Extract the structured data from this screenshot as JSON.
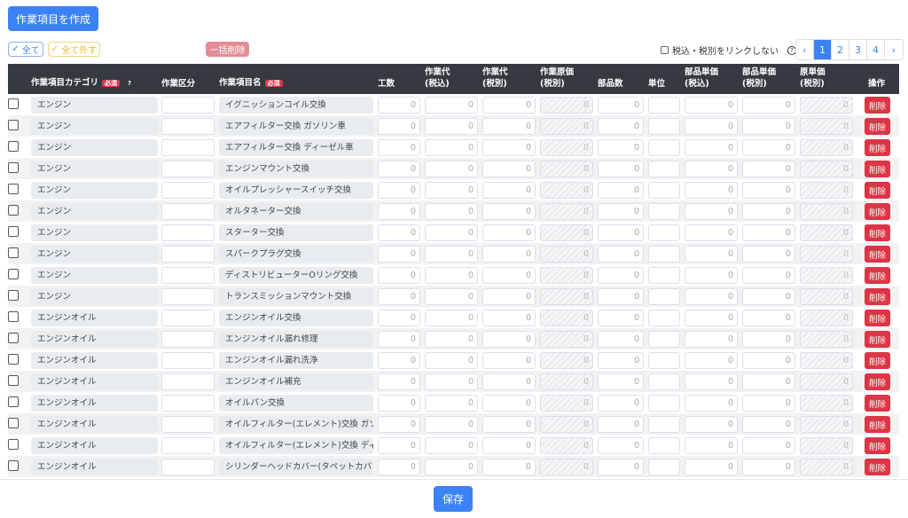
{
  "toolbar": {
    "create_label": "作業項目を作成",
    "select_all": "全て",
    "deselect_all": "全て外す",
    "bulk_delete": "一括削除",
    "link_label": "税込・税別をリンクしない",
    "help": "?"
  },
  "pagination": {
    "prev": "‹",
    "next": "›",
    "pages": [
      "1",
      "2",
      "3",
      "4"
    ],
    "current": "1"
  },
  "columns": {
    "category": "作業項目カテゴリ",
    "required": "必須",
    "kubun": "作業区分",
    "name": "作業項目名",
    "hours": "工数",
    "labor_incl": "作業代\n(税込)",
    "labor_excl": "作業代\n(税別)",
    "labor_cost": "作業原価\n(税別)",
    "parts_qty": "部品数",
    "unit": "単位",
    "parts_price_incl": "部品単価\n(税込)",
    "parts_price_excl": "部品単価\n(税別)",
    "cost_price": "原単価\n(税別)",
    "action": "操作"
  },
  "rows": [
    {
      "category": "エンジン",
      "name": "イグニッションコイル交換"
    },
    {
      "category": "エンジン",
      "name": "エアフィルター交換 ガソリン車"
    },
    {
      "category": "エンジン",
      "name": "エアフィルター交換 ディーゼル車"
    },
    {
      "category": "エンジン",
      "name": "エンジンマウント交換"
    },
    {
      "category": "エンジン",
      "name": "オイルプレッシャースイッチ交換"
    },
    {
      "category": "エンジン",
      "name": "オルタネーター交換"
    },
    {
      "category": "エンジン",
      "name": "スターター交換"
    },
    {
      "category": "エンジン",
      "name": "スパークプラグ交換"
    },
    {
      "category": "エンジン",
      "name": "ディストリビューターOリング交換"
    },
    {
      "category": "エンジン",
      "name": "トランスミッションマウント交換"
    },
    {
      "category": "エンジンオイル",
      "name": "エンジンオイル交換"
    },
    {
      "category": "エンジンオイル",
      "name": "エンジンオイル漏れ修理"
    },
    {
      "category": "エンジンオイル",
      "name": "エンジンオイル漏れ洗浄"
    },
    {
      "category": "エンジンオイル",
      "name": "エンジンオイル補充"
    },
    {
      "category": "エンジンオイル",
      "name": "オイルパン交換"
    },
    {
      "category": "エンジンオイル",
      "name": "オイルフィルター(エレメント)交換 ガソ"
    },
    {
      "category": "エンジンオイル",
      "name": "オイルフィルター(エレメント)交換 ディ"
    },
    {
      "category": "エンジンオイル",
      "name": "シリンダーヘッドカバー(タペットカバ"
    }
  ],
  "zero": "0",
  "delete_label": "削除",
  "footer": {
    "save_label": "保存"
  }
}
